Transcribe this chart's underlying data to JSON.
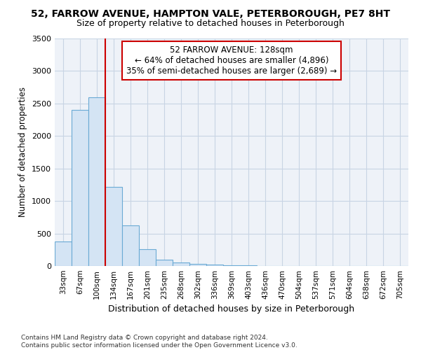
{
  "title": "52, FARROW AVENUE, HAMPTON VALE, PETERBOROUGH, PE7 8HT",
  "subtitle": "Size of property relative to detached houses in Peterborough",
  "xlabel": "Distribution of detached houses by size in Peterborough",
  "ylabel": "Number of detached properties",
  "categories": [
    "33sqm",
    "67sqm",
    "100sqm",
    "134sqm",
    "167sqm",
    "201sqm",
    "235sqm",
    "268sqm",
    "302sqm",
    "336sqm",
    "369sqm",
    "403sqm",
    "436sqm",
    "470sqm",
    "504sqm",
    "537sqm",
    "571sqm",
    "604sqm",
    "638sqm",
    "672sqm",
    "705sqm"
  ],
  "values": [
    380,
    2400,
    2600,
    1220,
    630,
    255,
    100,
    50,
    35,
    20,
    15,
    8,
    5,
    3,
    2,
    2,
    1,
    1,
    1,
    1,
    1
  ],
  "bar_color": "#d4e4f4",
  "bar_edge_color": "#6aaad4",
  "grid_color": "#c8d4e4",
  "bg_color": "#eef2f8",
  "vline_color": "#cc0000",
  "annotation_text": "52 FARROW AVENUE: 128sqm\n← 64% of detached houses are smaller (4,896)\n35% of semi-detached houses are larger (2,689) →",
  "annotation_box_color": "#ffffff",
  "annotation_box_edge": "#cc0000",
  "footnote": "Contains HM Land Registry data © Crown copyright and database right 2024.\nContains public sector information licensed under the Open Government Licence v3.0.",
  "ylim": [
    0,
    3500
  ],
  "vline_bar_index": 2
}
